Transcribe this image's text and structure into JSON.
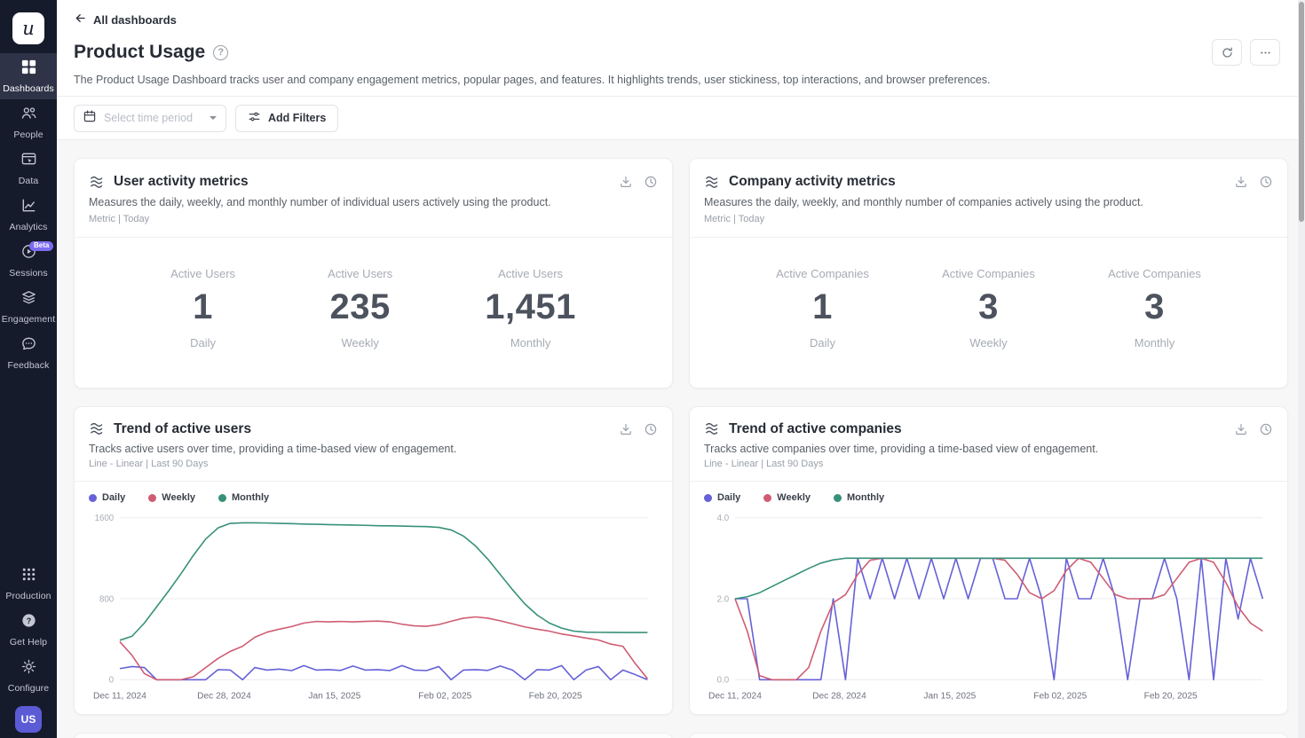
{
  "colors": {
    "sidebar_bg": "#161b2b",
    "accent_purple": "#5b5bd6",
    "beta_badge": "#7c6cf0",
    "series_daily": "#6661d8",
    "series_weekly": "#cf5c73",
    "series_monthly": "#37917a",
    "card_bg": "#ffffff",
    "content_bg": "#f7f7f8"
  },
  "icons": {
    "back": "←",
    "help": "?",
    "refresh": "⟳",
    "more": "⋯",
    "calendar": "📅",
    "filters": "⫞",
    "chevron_down": "▾",
    "download": "⭳",
    "history": "🕐",
    "chart": "≋"
  },
  "sidebar": {
    "logo": "u",
    "items": [
      {
        "label": "Dashboards",
        "active": true
      },
      {
        "label": "People"
      },
      {
        "label": "Data"
      },
      {
        "label": "Analytics"
      },
      {
        "label": "Sessions",
        "badge": "Beta"
      },
      {
        "label": "Engagement"
      },
      {
        "label": "Feedback"
      }
    ],
    "bottom_items": [
      {
        "label": "Production"
      },
      {
        "label": "Get Help"
      },
      {
        "label": "Configure"
      }
    ],
    "avatar_initials": "US"
  },
  "header": {
    "back_label": "All dashboards",
    "title": "Product Usage",
    "description": "The Product Usage Dashboard tracks user and company engagement metrics, popular pages, and features. It highlights trends, user stickiness, top interactions, and browser preferences."
  },
  "filters": {
    "time_period_placeholder": "Select time period",
    "add_filters_label": "Add Filters"
  },
  "cards": [
    {
      "type": "metric",
      "title": "User activity metrics",
      "description": "Measures the daily, weekly, and monthly number of individual users actively using the product.",
      "meta": "Metric | Today",
      "metrics": [
        {
          "label": "Active Users",
          "value": "1",
          "period": "Daily"
        },
        {
          "label": "Active Users",
          "value": "235",
          "period": "Weekly"
        },
        {
          "label": "Active Users",
          "value": "1,451",
          "period": "Monthly"
        }
      ]
    },
    {
      "type": "metric",
      "title": "Company activity metrics",
      "description": "Measures the daily, weekly, and monthly number of companies actively using the product.",
      "meta": "Metric | Today",
      "metrics": [
        {
          "label": "Active Companies",
          "value": "1",
          "period": "Daily"
        },
        {
          "label": "Active Companies",
          "value": "3",
          "period": "Weekly"
        },
        {
          "label": "Active Companies",
          "value": "3",
          "period": "Monthly"
        }
      ]
    },
    {
      "type": "line-chart",
      "title": "Trend of active users",
      "description": "Tracks active users over time, providing a time-based view of engagement.",
      "meta": "Line - Linear | Last 90 Days",
      "legend": [
        "Daily",
        "Weekly",
        "Monthly"
      ]
    },
    {
      "type": "line-chart",
      "title": "Trend of active companies",
      "description": "Tracks active companies over time, providing a time-based view of engagement.",
      "meta": "Line - Linear | Last 90 Days",
      "legend": [
        "Daily",
        "Weekly",
        "Monthly"
      ]
    }
  ],
  "chart_data": [
    {
      "type": "line",
      "title": "Trend of active users",
      "xlabel": "",
      "ylabel": "",
      "ylim": [
        0,
        1600
      ],
      "yticks": [
        {
          "value": 0,
          "label": "0"
        },
        {
          "value": 800,
          "label": "800"
        },
        {
          "value": 1600,
          "label": "1600"
        }
      ],
      "x_span_days": 86,
      "xticks": [
        {
          "day": 0,
          "label": "Dec 11, 2024"
        },
        {
          "day": 17,
          "label": "Dec 28, 2024"
        },
        {
          "day": 35,
          "label": "Jan 15, 2025"
        },
        {
          "day": 53,
          "label": "Feb 02, 2025"
        },
        {
          "day": 71,
          "label": "Feb 20, 2025"
        }
      ],
      "grid": true,
      "legend_position": "top-left",
      "series": [
        {
          "name": "Daily",
          "color": "#6661d8",
          "values": [
            110,
            130,
            120,
            0,
            0,
            0,
            0,
            0,
            100,
            95,
            0,
            120,
            95,
            105,
            90,
            140,
            95,
            100,
            92,
            135,
            95,
            100,
            90,
            140,
            95,
            90,
            130,
            0,
            95,
            100,
            92,
            135,
            95,
            0,
            100,
            95,
            140,
            0,
            95,
            130,
            0,
            95,
            50,
            0
          ]
        },
        {
          "name": "Weekly",
          "color": "#cf5c73",
          "values": [
            375,
            240,
            60,
            0,
            0,
            0,
            30,
            120,
            210,
            280,
            330,
            420,
            470,
            500,
            525,
            560,
            575,
            572,
            575,
            572,
            576,
            580,
            572,
            548,
            532,
            528,
            545,
            578,
            608,
            620,
            608,
            582,
            552,
            522,
            500,
            480,
            452,
            432,
            412,
            392,
            352,
            330,
            160,
            10
          ]
        },
        {
          "name": "Monthly",
          "color": "#37917a",
          "values": [
            390,
            430,
            560,
            720,
            880,
            1050,
            1230,
            1390,
            1500,
            1545,
            1550,
            1550,
            1548,
            1545,
            1542,
            1538,
            1535,
            1532,
            1530,
            1528,
            1525,
            1522,
            1520,
            1518,
            1515,
            1512,
            1505,
            1480,
            1420,
            1320,
            1190,
            1040,
            890,
            750,
            640,
            560,
            510,
            480,
            470,
            468,
            467,
            466,
            466,
            466
          ]
        }
      ]
    },
    {
      "type": "line",
      "title": "Trend of active companies",
      "xlabel": "",
      "ylabel": "",
      "ylim": [
        0,
        4
      ],
      "yticks": [
        {
          "value": 0,
          "label": "0.0"
        },
        {
          "value": 2,
          "label": "2.0"
        },
        {
          "value": 4,
          "label": "4.0"
        }
      ],
      "x_span_days": 86,
      "xticks": [
        {
          "day": 0,
          "label": "Dec 11, 2024"
        },
        {
          "day": 17,
          "label": "Dec 28, 2024"
        },
        {
          "day": 35,
          "label": "Jan 15, 2025"
        },
        {
          "day": 53,
          "label": "Feb 02, 2025"
        },
        {
          "day": 71,
          "label": "Feb 20, 2025"
        }
      ],
      "grid": true,
      "legend_position": "top-left",
      "series": [
        {
          "name": "Daily",
          "color": "#6661d8",
          "values": [
            2,
            2,
            0,
            0,
            0,
            0,
            0,
            0,
            2,
            0,
            3,
            2,
            3,
            2,
            3,
            2,
            3,
            2,
            3,
            2,
            3,
            3,
            2,
            2,
            3,
            2,
            0,
            3,
            2,
            2,
            3,
            2,
            0,
            2,
            2,
            3,
            2,
            0,
            3,
            0,
            3,
            1.5,
            3,
            2
          ]
        },
        {
          "name": "Weekly",
          "color": "#cf5c73",
          "values": [
            2.0,
            1.2,
            0.1,
            0,
            0,
            0,
            0.3,
            1.2,
            1.9,
            2.1,
            2.6,
            2.95,
            3.0,
            3.0,
            3.0,
            3.0,
            3.0,
            3.0,
            3.0,
            3.0,
            3.0,
            3.0,
            2.95,
            2.6,
            2.15,
            2.0,
            2.2,
            2.7,
            3.0,
            2.9,
            2.5,
            2.1,
            2.0,
            2.0,
            2.0,
            2.1,
            2.5,
            2.9,
            3.0,
            2.9,
            2.4,
            1.8,
            1.4,
            1.2
          ]
        },
        {
          "name": "Monthly",
          "color": "#37917a",
          "values": [
            2.0,
            2.05,
            2.15,
            2.3,
            2.45,
            2.6,
            2.75,
            2.88,
            2.96,
            3.0,
            3.0,
            3.0,
            3.0,
            3.0,
            3.0,
            3.0,
            3.0,
            3.0,
            3.0,
            3.0,
            3.0,
            3.0,
            3.0,
            3.0,
            3.0,
            3.0,
            3.0,
            3.0,
            3.0,
            3.0,
            3.0,
            3.0,
            3.0,
            3.0,
            3.0,
            3.0,
            3.0,
            3.0,
            3.0,
            3.0,
            3.0,
            3.0,
            3.0,
            3.0
          ]
        }
      ]
    }
  ]
}
